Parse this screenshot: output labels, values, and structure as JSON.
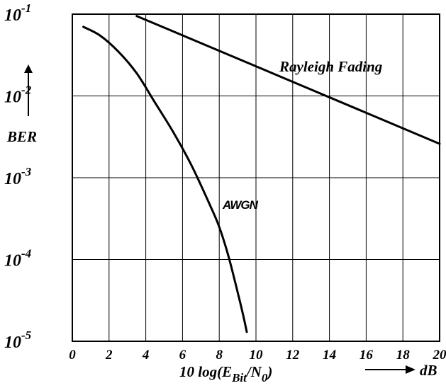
{
  "chart_data": {
    "type": "line",
    "x_ticks": [
      "0",
      "2",
      "4",
      "6",
      "8",
      "10",
      "12",
      "14",
      "16",
      "18",
      "20"
    ],
    "xlim": [
      0,
      20
    ],
    "y_scale": "log",
    "ylim": [
      1e-05,
      0.1
    ],
    "y_tick_values": [
      0.1,
      0.01,
      0.001,
      0.0001,
      1e-05
    ],
    "y_ticks": [
      {
        "base": "10",
        "exp": "-1"
      },
      {
        "base": "10",
        "exp": "-2"
      },
      {
        "base": "10",
        "exp": "-3"
      },
      {
        "base": "10",
        "exp": "-4"
      },
      {
        "base": "10",
        "exp": "-5"
      }
    ],
    "grid": true,
    "ylabel": "BER",
    "xlabel": {
      "prefix": "10 log(E",
      "sub1": "Bit",
      "mid": "/N",
      "sub2": "0",
      "suffix": ")"
    },
    "x_unit": "dB",
    "series": [
      {
        "name": "AWGN",
        "x": [
          0.6,
          1.5,
          2.5,
          3.5,
          4.5,
          5.5,
          6.5,
          7.5,
          8.0,
          8.5,
          9.0,
          9.3,
          9.5
        ],
        "y": [
          0.07,
          0.055,
          0.035,
          0.019,
          0.0083,
          0.0036,
          0.0014,
          0.00046,
          0.00025,
          0.00011,
          4e-05,
          2.1e-05,
          1.3e-05
        ]
      },
      {
        "name": "Rayleigh Fading",
        "x": [
          3.5,
          20.0
        ],
        "y": [
          0.095,
          0.0026
        ]
      }
    ]
  }
}
